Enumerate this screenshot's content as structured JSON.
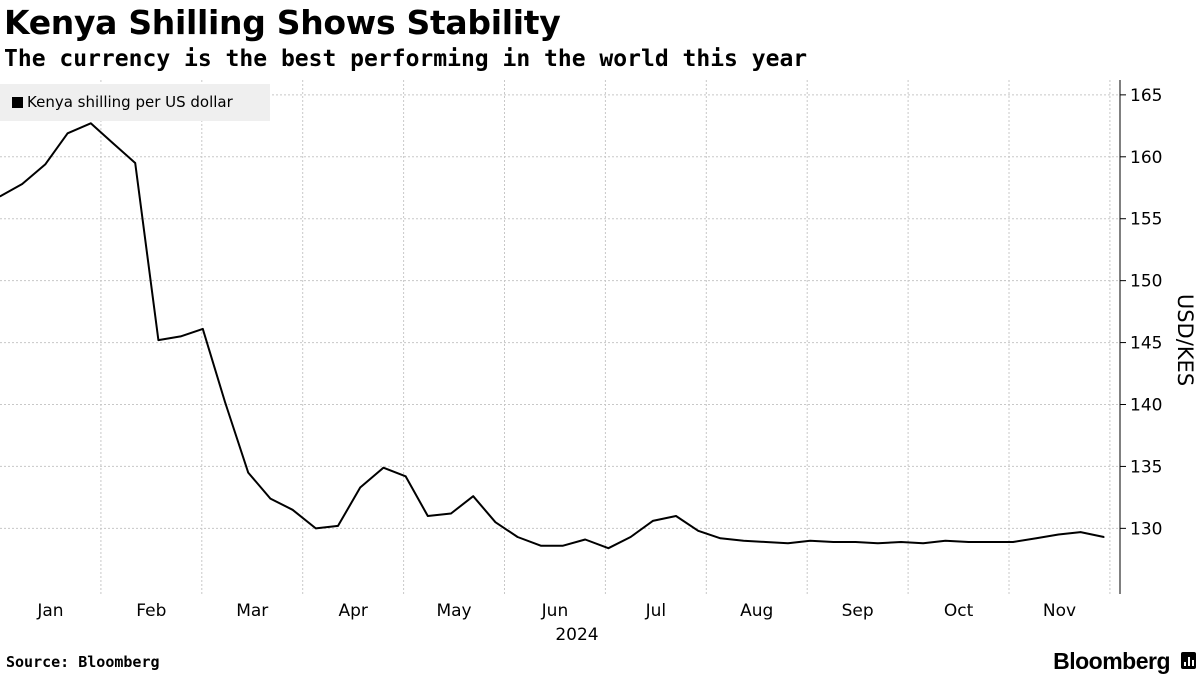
{
  "header": {
    "title": "Kenya Shilling Shows Stability",
    "subtitle": "The currency is the best performing in the world this year"
  },
  "legend": {
    "label": "Kenya shilling per US dollar",
    "swatch_color": "#000000"
  },
  "footer": {
    "source": "Source: Bloomberg",
    "brand": "Bloomberg"
  },
  "chart_data": {
    "type": "line",
    "title": "Kenya Shilling Shows Stability",
    "subtitle": "The currency is the best performing in the world this year",
    "xlabel": "2024",
    "ylabel": "USD/KES",
    "x_range": [
      0,
      11.1
    ],
    "ylim": [
      124.7,
      166.2
    ],
    "grid": true,
    "legend_position": "top-left",
    "x_ticks": [
      {
        "label": "Jan",
        "value": 0.5
      },
      {
        "label": "Feb",
        "value": 1.5
      },
      {
        "label": "Mar",
        "value": 2.5
      },
      {
        "label": "Apr",
        "value": 3.5
      },
      {
        "label": "May",
        "value": 4.5
      },
      {
        "label": "Jun",
        "value": 5.5
      },
      {
        "label": "Jul",
        "value": 6.5
      },
      {
        "label": "Aug",
        "value": 7.5
      },
      {
        "label": "Sep",
        "value": 8.5
      },
      {
        "label": "Oct",
        "value": 9.5
      },
      {
        "label": "Nov",
        "value": 10.5
      }
    ],
    "x_grid": [
      1,
      2,
      3,
      4,
      5,
      6,
      7,
      8,
      9,
      10,
      11
    ],
    "y_ticks": [
      130,
      135,
      140,
      145,
      150,
      155,
      160,
      165
    ],
    "series": [
      {
        "name": "Kenya shilling per US dollar",
        "color": "#000000",
        "x": [
          0.0,
          0.22,
          0.45,
          0.67,
          0.9,
          1.12,
          1.34,
          1.57,
          1.79,
          2.01,
          2.23,
          2.46,
          2.68,
          2.9,
          3.13,
          3.35,
          3.57,
          3.8,
          4.02,
          4.24,
          4.47,
          4.69,
          4.91,
          5.13,
          5.36,
          5.58,
          5.8,
          6.03,
          6.25,
          6.47,
          6.7,
          6.92,
          7.14,
          7.37,
          7.59,
          7.81,
          8.03,
          8.26,
          8.48,
          8.7,
          8.93,
          9.15,
          9.37,
          9.6,
          9.82,
          10.04,
          10.27,
          10.49,
          10.71,
          10.94
        ],
        "y": [
          156.8,
          157.8,
          159.4,
          161.9,
          162.7,
          161.1,
          159.5,
          145.2,
          145.5,
          146.1,
          140.2,
          134.5,
          132.4,
          131.5,
          130.0,
          130.2,
          133.3,
          134.9,
          134.2,
          131.0,
          131.2,
          132.6,
          130.5,
          129.3,
          128.6,
          128.6,
          129.1,
          128.4,
          129.3,
          130.6,
          131.0,
          129.8,
          129.2,
          129.0,
          128.9,
          128.8,
          129.0,
          128.9,
          128.9,
          128.8,
          128.9,
          128.8,
          129.0,
          128.9,
          128.9,
          128.9,
          129.2,
          129.5,
          129.7,
          129.3
        ]
      }
    ]
  }
}
